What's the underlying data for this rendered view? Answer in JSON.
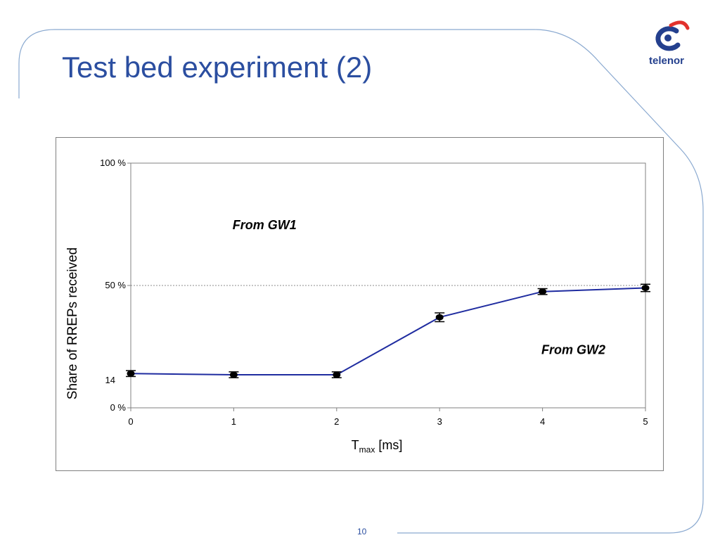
{
  "slide": {
    "title": "Test bed experiment (2)",
    "page_number": "10"
  },
  "logo": {
    "text": "telenor",
    "colors": {
      "brand_blue": "#24408e",
      "accent_red": "#e2312c"
    }
  },
  "theme": {
    "title_color": "#2b4ea0",
    "frame_color": "#8aa9d0",
    "series_color": "#1f2ca0"
  },
  "chart_data": {
    "type": "line",
    "x": [
      0,
      1,
      2,
      3,
      4,
      5
    ],
    "series": [
      {
        "values": [
          14,
          13.5,
          13.5,
          37,
          47.5,
          49
        ],
        "error": [
          1.2,
          1.2,
          1.2,
          1.8,
          1.2,
          1.5
        ]
      }
    ],
    "xlabel_main": "T",
    "xlabel_sub": "max",
    "xlabel_unit": "[ms]",
    "ylabel": "Share of RREPs received",
    "xlim": [
      0,
      5
    ],
    "ylim": [
      0,
      100
    ],
    "xticks": [
      "0",
      "1",
      "2",
      "3",
      "4",
      "5"
    ],
    "yticks": [
      {
        "value": 0,
        "label": "0 %"
      },
      {
        "value": 50,
        "label": "50 %"
      },
      {
        "value": 100,
        "label": "100 %"
      }
    ],
    "reference_line": 50,
    "annotations": [
      {
        "text": "From GW1",
        "x": 1.3,
        "y": 73
      },
      {
        "text": "From GW2",
        "x": 4.3,
        "y": 22
      },
      {
        "text": "14",
        "x": -0.2,
        "y": 10
      }
    ],
    "grid": false,
    "legend": "none"
  }
}
